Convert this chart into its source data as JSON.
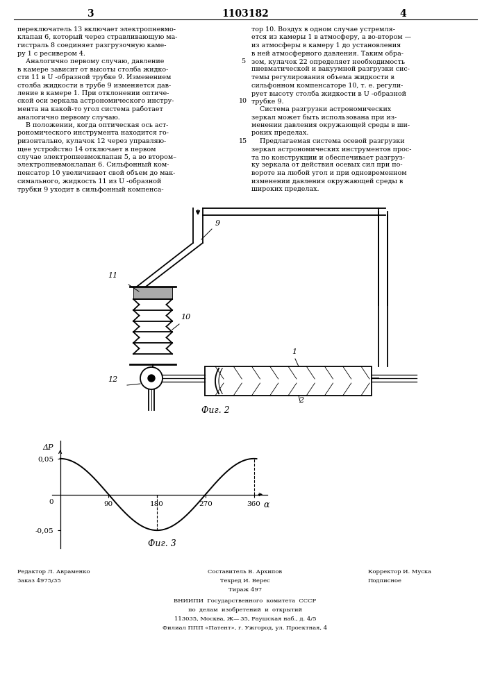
{
  "page_number_left": "3",
  "patent_number": "1103182",
  "page_number_right": "4",
  "bg_color": "#ffffff",
  "text_color": "#000000",
  "left_column_text": [
    "переключатель 13 включает электропневмо-",
    "клапан 6, который через стравливающую ма-",
    "гистраль 8 соединяет разгрузочную каме-",
    "ру 1 с ресивером 4.",
    "    Аналогично первому случаю, давление",
    "в камере зависит от высоты столба жидко-",
    "сти 11 в U ‑образной трубке 9. Изменением",
    "столба жидкости в трубе 9 изменяется дав-",
    "ление в камере 1. При отклонении оптиче-",
    "ской оси зеркала астрономического инстру-",
    "мента на какой-то угол система работает",
    "аналогично первому случаю.",
    "    В положении, когда оптическая ось аст-",
    "рономического инструмента находится го-",
    "ризонтально, кулачок 12 через управляю-",
    "щее устройство 14 отключает в первом",
    "случае электропневмоклапан 5, а во втором–",
    "электропневмоклапан 6. Сильфонный ком-",
    "пенсатор 10 увеличивает свой объем до мак-",
    "симального, жидкость 11 из U ‑образной",
    "трубки 9 уходит в сильфонный компенса-"
  ],
  "right_column_text": [
    "тор 10. Воздух в одном случае устремля-",
    "ется из камеры 1 в атмосферу, а во-втором —",
    "из атмосферы в камеру 1 до установления",
    "в ней атмосферного давления. Таким обра-",
    "зом, кулачок 22 определяет необходимость",
    "пневматической и вакуумной разгрузки сис-",
    "темы регулирования объема жидкости в",
    "сильфонном компенсаторе 10, т. е. регули-",
    "рует высоту столба жидкости в U ‑образной",
    "трубке 9.",
    "    Система разгрузки астрономических",
    "зеркал может быть использована при из-",
    "менении давления окружающей среды в ши-",
    "роких пределах.",
    "    Предлагаемая система осевой разгрузки",
    "зеркал астрономических инструментов прос-",
    "та по конструкции и обеспечивает разгруз-",
    "ку зеркала от действия осевых сил при по-",
    "вороте на любой угол и при одновременном",
    "изменении давления окружающей среды в",
    "широких пределах."
  ],
  "fig2_label": "Фиг. 2",
  "fig3_label": "Фиг. 3",
  "graph_ylabel": "ΔP",
  "graph_xlabel": "α",
  "footer_editor": "Редактор Л. Авраменко",
  "footer_composer": "Составитель В. Архипов",
  "footer_corrector": "Корректор И. Муска",
  "footer_order": "Заказ 4975/35",
  "footer_techred": "Техред И. Верес",
  "footer_signed": "Подписное",
  "footer_circulation": "Тираж 497",
  "footer_vniigi": "ВНИИПИ  Государственного  комитета  СССР",
  "footer_affairs": "по  делам  изобретений  и  открытий",
  "footer_address": "113035, Москва, Ж— 35, Раушская наб., д. 4/5",
  "footer_filial": "Филиал ППП «Патент», г. Ужгород, ул. Проектная, 4"
}
